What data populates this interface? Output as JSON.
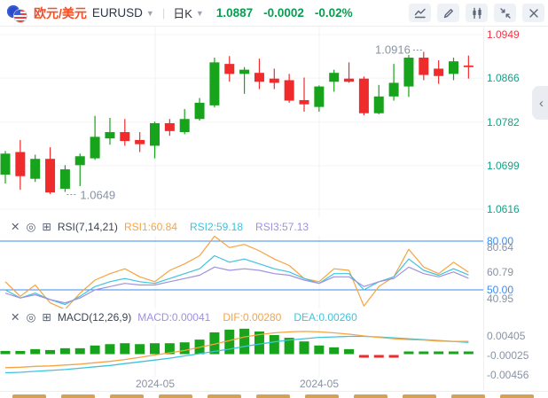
{
  "header": {
    "flag_icon": "eu-us-currency-pair-flag",
    "pair_name": "欧元/美元",
    "symbol": "EURUSD",
    "period": "日K",
    "last_price": "1.0887",
    "change": "-0.0002",
    "change_percent": "-0.02%"
  },
  "toolbar": {
    "icons": [
      "indicator-line-icon",
      "draw-pencil-icon",
      "candle-compare-icon",
      "collapse-chart-icon",
      "close-icon"
    ]
  },
  "colors": {
    "up": "#17a31b",
    "down": "#ef2b2b",
    "quote_green": "#089e51",
    "axis_green": "#16a085",
    "axis_red": "#f23645",
    "rsi1": "#f5a443",
    "rsi2": "#3fc3dc",
    "rsi3": "#a091e0",
    "hline_blue": "#3e8bef",
    "dif": "#f5a443",
    "dea": "#3fc3dc",
    "macd_label": "#a091e0",
    "nav_dash": "#d5a155",
    "gray_text": "#8a93a3"
  },
  "main_chart": {
    "y_axis": [
      {
        "text": "1.0949",
        "color": "red"
      },
      {
        "text": "1.0866",
        "color": "green"
      },
      {
        "text": "1.0782",
        "color": "green"
      },
      {
        "text": "1.0699",
        "color": "green"
      },
      {
        "text": "1.0616",
        "color": "green"
      }
    ],
    "low_label": "1.0649",
    "high_label": "1.0916"
  },
  "rsi_panel": {
    "title": "RSI(7,14,21)",
    "legend": [
      {
        "text": "RSI1:60.84",
        "color_key": "rsi1"
      },
      {
        "text": "RSI2:59.18",
        "color_key": "rsi2"
      },
      {
        "text": "RSI3:57.13",
        "color_key": "rsi3"
      }
    ],
    "y_axis": [
      {
        "text": "80.00",
        "blue": true,
        "v": 80
      },
      {
        "text": "80.64",
        "blue": false,
        "v": 76
      },
      {
        "text": "60.79",
        "blue": false,
        "v": 60.79
      },
      {
        "text": "50.00",
        "blue": true,
        "v": 50
      },
      {
        "text": "40.95",
        "blue": false,
        "v": 44.5
      }
    ]
  },
  "macd_panel": {
    "title": "MACD(12,26,9)",
    "legend": [
      {
        "text": "MACD:0.00041",
        "color_key": "macd_label"
      },
      {
        "text": "DIF:0.00280",
        "color_key": "dif"
      },
      {
        "text": "DEA:0.00260",
        "color_key": "dea"
      }
    ],
    "y_axis": [
      {
        "text": "0.00405",
        "v": 0.00405
      },
      {
        "text": "-0.00025",
        "v": -0.00025
      },
      {
        "text": "-0.00456",
        "v": -0.00456
      }
    ]
  },
  "x_axis_labels": [
    {
      "text": "2024-05",
      "x": 175
    },
    {
      "text": "2024-05",
      "x": 360
    }
  ],
  "chart_data": [
    {
      "type": "candlestick",
      "title": "EURUSD 日K (daily candles)",
      "ylim": [
        1.0601,
        1.096
      ],
      "yticks": [
        1.0949,
        1.0866,
        1.0782,
        1.0699,
        1.0616
      ],
      "grid": true,
      "ohlc": [
        [
          1.0682,
          1.0727,
          1.0665,
          1.0722
        ],
        [
          1.0725,
          1.0748,
          1.0653,
          1.0679
        ],
        [
          1.0674,
          1.072,
          1.0668,
          1.0712
        ],
        [
          1.0712,
          1.0734,
          1.0645,
          1.0648
        ],
        [
          1.0655,
          1.07,
          1.0649,
          1.0692
        ],
        [
          1.07,
          1.0722,
          1.066,
          1.0717
        ],
        [
          1.0713,
          1.0794,
          1.071,
          1.0754
        ],
        [
          1.0751,
          1.079,
          1.0739,
          1.0763
        ],
        [
          1.0763,
          1.0788,
          1.0737,
          1.0746
        ],
        [
          1.0748,
          1.0763,
          1.0725,
          1.074
        ],
        [
          1.0737,
          1.0783,
          1.0713,
          1.078
        ],
        [
          1.078,
          1.0788,
          1.0756,
          1.0765
        ],
        [
          1.0763,
          1.0807,
          1.0759,
          1.0788
        ],
        [
          1.0788,
          1.0828,
          1.0785,
          1.0819
        ],
        [
          1.0814,
          1.0905,
          1.081,
          1.0896
        ],
        [
          1.0893,
          1.0908,
          1.0859,
          1.0874
        ],
        [
          1.0874,
          1.0887,
          1.0836,
          1.0882
        ],
        [
          1.0876,
          1.0903,
          1.0845,
          1.0859
        ],
        [
          1.0865,
          1.0884,
          1.0845,
          1.0857
        ],
        [
          1.0862,
          1.0874,
          1.0819,
          1.0823
        ],
        [
          1.0824,
          1.0867,
          1.0802,
          1.0816
        ],
        [
          1.0811,
          1.0852,
          1.0802,
          1.085
        ],
        [
          1.0859,
          1.0882,
          1.084,
          1.0876
        ],
        [
          1.0865,
          1.0896,
          1.0857,
          1.0859
        ],
        [
          1.0865,
          1.0869,
          1.0795,
          1.0799
        ],
        [
          1.0799,
          1.0853,
          1.0797,
          1.0831
        ],
        [
          1.0831,
          1.0893,
          1.0823,
          1.0857
        ],
        [
          1.085,
          1.091,
          1.083,
          1.0905
        ],
        [
          1.0905,
          1.0916,
          1.0862,
          1.0872
        ],
        [
          1.0884,
          1.09,
          1.0855,
          1.087
        ],
        [
          1.0874,
          1.0905,
          1.0862,
          1.0898
        ],
        [
          1.089,
          1.0909,
          1.0865,
          1.0887
        ]
      ],
      "annotations": [
        {
          "label": "1.0649",
          "candle_index": 4,
          "at": "low"
        },
        {
          "label": "1.0916",
          "candle_index": 28,
          "at": "high"
        }
      ]
    },
    {
      "type": "line",
      "name": "RSI(7,14,21)",
      "hlines": [
        80,
        50
      ],
      "ylim": [
        36,
        84
      ],
      "series": [
        {
          "name": "RSI1",
          "values": [
            55,
            46,
            53,
            42,
            38,
            48,
            56,
            60,
            63,
            58,
            55,
            62,
            66,
            71,
            83,
            76,
            78,
            74,
            69,
            65,
            57,
            55,
            63,
            62,
            40,
            52,
            58,
            75,
            64,
            60,
            67,
            60.84
          ]
        },
        {
          "name": "RSI2",
          "values": [
            50,
            45,
            48,
            44,
            41,
            46,
            52,
            55,
            57,
            55,
            54,
            57,
            60,
            63,
            71,
            67,
            69,
            66,
            63,
            61,
            57,
            54,
            60,
            60,
            50,
            55,
            58,
            69,
            62,
            59,
            63,
            59.18
          ]
        },
        {
          "name": "RSI3",
          "values": [
            48,
            45,
            47,
            44,
            42,
            45,
            50,
            52,
            54,
            53,
            53,
            55,
            57,
            59,
            64,
            62,
            63,
            62,
            60,
            59,
            56,
            54,
            58,
            58,
            52,
            55,
            57,
            64,
            60,
            58,
            61,
            57.13
          ]
        }
      ]
    },
    {
      "type": "bar",
      "name": "MACD(12,26,9)",
      "yticks": [
        0.00405,
        -0.00025,
        -0.00456
      ],
      "bars": [
        0.0007,
        0.0007,
        0.0011,
        0.0009,
        0.0013,
        0.0013,
        0.0019,
        0.0022,
        0.0024,
        0.0022,
        0.0024,
        0.0024,
        0.0026,
        0.0032,
        0.0048,
        0.0054,
        0.0056,
        0.005,
        0.0042,
        0.0036,
        0.0028,
        0.0019,
        0.0015,
        0.0011,
        -0.0002,
        -0.0003,
        -0.0002,
        0.0005,
        0.0005,
        0.0005,
        0.0005,
        0.00041
      ],
      "series": [
        {
          "name": "DIF",
          "values": [
            -0.003,
            -0.0029,
            -0.0027,
            -0.0026,
            -0.0024,
            -0.0022,
            -0.0019,
            -0.0016,
            -0.0012,
            -0.0007,
            -0.0002,
            0.0003,
            0.0008,
            0.0015,
            0.0022,
            0.003,
            0.0038,
            0.0043,
            0.0047,
            0.0049,
            0.005,
            0.0049,
            0.0047,
            0.0044,
            0.004,
            0.0037,
            0.0034,
            0.0032,
            0.0031,
            0.0029,
            0.0028,
            0.0028
          ]
        },
        {
          "name": "DEA",
          "values": [
            -0.0041,
            -0.004,
            -0.0038,
            -0.0036,
            -0.0034,
            -0.0031,
            -0.0028,
            -0.0025,
            -0.0021,
            -0.0017,
            -0.0013,
            -0.0009,
            -0.0004,
            0.0001,
            0.0006,
            0.0011,
            0.0017,
            0.0022,
            0.0027,
            0.0031,
            0.0034,
            0.0037,
            0.0038,
            0.0039,
            0.0039,
            0.0038,
            0.0036,
            0.0034,
            0.0032,
            0.003,
            0.0028,
            0.0026
          ]
        }
      ]
    }
  ]
}
